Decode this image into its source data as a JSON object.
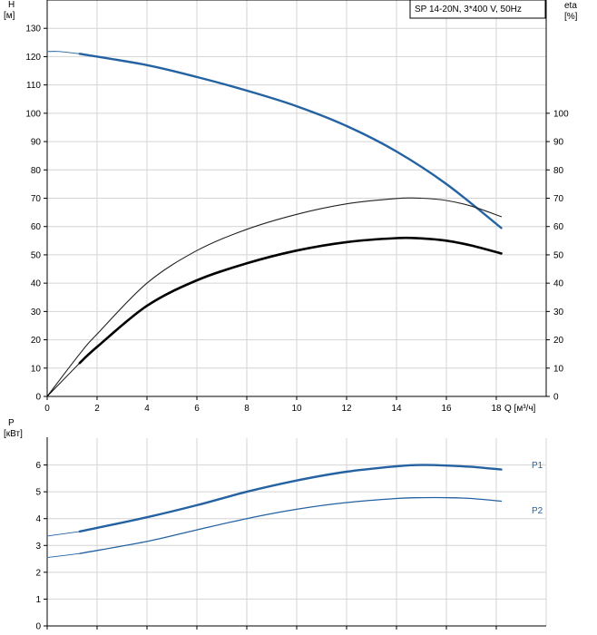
{
  "chart_data": [
    {
      "type": "line",
      "title": "SP 14-20N, 3*400 V, 50Hz",
      "y_left": {
        "label": "H",
        "unit": "[м]",
        "ylim": [
          0,
          140
        ],
        "ticks": [
          0,
          10,
          20,
          30,
          40,
          50,
          60,
          70,
          80,
          90,
          100,
          110,
          120,
          130
        ]
      },
      "y_right": {
        "label": "eta",
        "unit": "[%]",
        "ylim": [
          0,
          140
        ],
        "ticks": [
          0,
          10,
          20,
          30,
          40,
          50,
          60,
          70,
          80,
          90,
          100
        ]
      },
      "x_axis": {
        "label": "Q [м³/ч]",
        "xlim": [
          0,
          20
        ],
        "ticks": [
          0,
          2,
          4,
          6,
          8,
          10,
          12,
          14,
          16,
          18
        ]
      },
      "grid": true,
      "series": [
        {
          "id": "head",
          "axis": "left",
          "color": "#2462a2",
          "extension": [
            [
              0,
              121.8
            ],
            [
              0.5,
              121.8
            ],
            [
              1.3,
              121
            ]
          ],
          "points": [
            [
              1.3,
              121
            ],
            [
              4,
              117
            ],
            [
              6,
              112.8
            ],
            [
              8,
              108
            ],
            [
              10,
              102.5
            ],
            [
              12,
              95.5
            ],
            [
              14,
              86.5
            ],
            [
              16,
              75
            ],
            [
              18.2,
              59.5
            ]
          ]
        },
        {
          "id": "eta-thin",
          "axis": "right",
          "color": "#222222",
          "points": [
            [
              0,
              0
            ],
            [
              1.3,
              15
            ],
            [
              2,
              22
            ],
            [
              4,
              40
            ],
            [
              6,
              51.5
            ],
            [
              8,
              59
            ],
            [
              10,
              64.3
            ],
            [
              12,
              68
            ],
            [
              14,
              69.9
            ],
            [
              15,
              70
            ],
            [
              16,
              69.2
            ],
            [
              17,
              67.2
            ],
            [
              18.2,
              63.5
            ]
          ]
        },
        {
          "id": "eta-thick",
          "axis": "right",
          "color": "#000000",
          "extension": [
            [
              0,
              0
            ],
            [
              1.3,
              11.8
            ]
          ],
          "points": [
            [
              1.3,
              11.8
            ],
            [
              2,
              17.5
            ],
            [
              4,
              32
            ],
            [
              6,
              41
            ],
            [
              8,
              47
            ],
            [
              10,
              51.5
            ],
            [
              12,
              54.5
            ],
            [
              14,
              55.9
            ],
            [
              15,
              55.8
            ],
            [
              16,
              55
            ],
            [
              17,
              53.3
            ],
            [
              18.2,
              50.5
            ]
          ]
        }
      ]
    },
    {
      "type": "line",
      "y_left": {
        "label": "P",
        "unit": "[кВт]",
        "ylim": [
          0,
          7
        ],
        "ticks": [
          0,
          1,
          2,
          3,
          4,
          5,
          6
        ]
      },
      "x_axis": {
        "xlim": [
          0,
          20
        ],
        "ticks": [
          0,
          2,
          4,
          6,
          8,
          10,
          12,
          14,
          16,
          18
        ]
      },
      "grid": true,
      "series": [
        {
          "id": "P1",
          "name": "P1",
          "color": "#2462a2",
          "extension": [
            [
              0,
              3.35
            ],
            [
              1.3,
              3.52
            ]
          ],
          "points": [
            [
              1.3,
              3.52
            ],
            [
              4,
              4.05
            ],
            [
              6,
              4.5
            ],
            [
              8,
              5
            ],
            [
              10,
              5.42
            ],
            [
              12,
              5.75
            ],
            [
              14,
              5.95
            ],
            [
              15,
              6
            ],
            [
              16,
              5.98
            ],
            [
              17,
              5.93
            ],
            [
              18.2,
              5.83
            ]
          ]
        },
        {
          "id": "P2",
          "name": "P2",
          "color": "#2462a2",
          "extension": [
            [
              0,
              2.55
            ],
            [
              1.3,
              2.7
            ]
          ],
          "points": [
            [
              1.3,
              2.7
            ],
            [
              4,
              3.15
            ],
            [
              6,
              3.58
            ],
            [
              8,
              4
            ],
            [
              10,
              4.35
            ],
            [
              12,
              4.6
            ],
            [
              14,
              4.75
            ],
            [
              15,
              4.78
            ],
            [
              16,
              4.78
            ],
            [
              17,
              4.75
            ],
            [
              18.2,
              4.65
            ]
          ]
        }
      ]
    }
  ]
}
